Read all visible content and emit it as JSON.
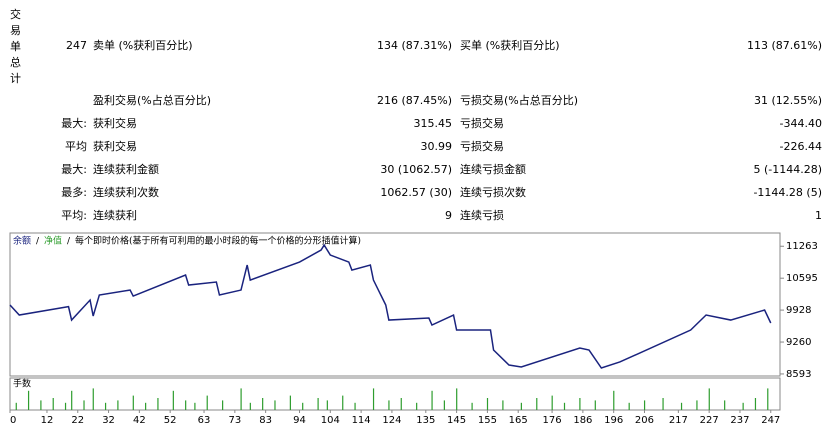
{
  "summary": {
    "side_label": [
      "交",
      "易",
      "单",
      "总",
      "计"
    ],
    "rows": [
      [
        "247",
        "卖单 (%获利百分比)",
        "134 (87.31%)",
        "买单 (%获利百分比)",
        "113 (87.61%)"
      ],
      [
        null,
        "盈利交易(%占总百分比)",
        "216 (87.45%)",
        "亏损交易(%占总百分比)",
        "31 (12.55%)"
      ],
      [
        "最大:",
        "获利交易",
        "315.45",
        "亏损交易",
        "-344.40"
      ],
      [
        "平均",
        "获利交易",
        "30.99",
        "亏损交易",
        "-226.44"
      ],
      [
        "最大:",
        "连续获利金额",
        "30 (1062.57)",
        "连续亏损金额",
        "5 (-1144.28)"
      ],
      [
        "最多:",
        "连续获利次数",
        "1062.57 (30)",
        "连续亏损次数",
        "-1144.28 (5)"
      ],
      [
        "平均:",
        "连续获利",
        "9",
        "连续亏损",
        "1"
      ]
    ]
  },
  "chart_data": [
    {
      "type": "line",
      "legend_items": [
        {
          "text": "余额",
          "color": "#1a237e"
        },
        {
          "text": "净值",
          "color": "#2e9d2e"
        },
        {
          "text": "每个即时价格(基于所有可利用的最小时段的每一个价格的分形插值计算)",
          "color": "#000000"
        }
      ],
      "x": [
        0,
        3,
        19,
        20,
        26,
        27,
        29,
        39,
        40,
        57,
        58,
        67,
        68,
        75,
        77,
        78,
        94,
        101,
        102,
        104,
        110,
        111,
        117,
        118,
        122,
        123,
        136,
        137,
        144,
        145,
        156,
        157,
        162,
        166,
        185,
        188,
        192,
        198,
        221,
        226,
        234,
        245,
        247
      ],
      "series": [
        {
          "name": "余额",
          "color": "#1a237e",
          "values": [
            10034,
            9825,
            10000,
            9720,
            10138,
            9804,
            10243,
            10347,
            10222,
            10661,
            10452,
            10515,
            10243,
            10347,
            10870,
            10556,
            10933,
            11183,
            11288,
            11079,
            10933,
            10765,
            10870,
            10556,
            10034,
            9720,
            9762,
            9616,
            9825,
            9511,
            9511,
            9093,
            8780,
            8738,
            9135,
            9093,
            8717,
            8843,
            9511,
            9825,
            9720,
            9929,
            9658
          ]
        }
      ],
      "xlim": [
        0,
        250
      ],
      "ylim": [
        8550,
        11540
      ],
      "yticks": [
        8593,
        9260,
        9928,
        10595,
        11263
      ],
      "xticks": [
        0,
        12,
        22,
        32,
        42,
        52,
        63,
        73,
        83,
        94,
        104,
        114,
        124,
        135,
        145,
        155,
        165,
        176,
        186,
        196,
        206,
        217,
        227,
        237,
        247
      ]
    },
    {
      "type": "bar",
      "title": "手数",
      "color": "#2e9d2e",
      "x": [
        2,
        6,
        10,
        14,
        18,
        20,
        24,
        27,
        31,
        35,
        40,
        44,
        48,
        53,
        57,
        60,
        64,
        69,
        75,
        78,
        82,
        86,
        91,
        95,
        100,
        103,
        108,
        112,
        118,
        123,
        127,
        132,
        137,
        141,
        145,
        150,
        155,
        160,
        166,
        171,
        176,
        180,
        185,
        190,
        196,
        201,
        206,
        212,
        218,
        223,
        227,
        232,
        238,
        242,
        246
      ],
      "values": [
        0.3,
        0.8,
        0.4,
        0.5,
        0.3,
        0.8,
        0.4,
        0.9,
        0.3,
        0.4,
        0.6,
        0.3,
        0.5,
        0.8,
        0.4,
        0.3,
        0.6,
        0.4,
        0.9,
        0.3,
        0.5,
        0.4,
        0.6,
        0.3,
        0.5,
        0.4,
        0.6,
        0.3,
        0.9,
        0.4,
        0.5,
        0.3,
        0.8,
        0.4,
        0.9,
        0.3,
        0.5,
        0.4,
        0.3,
        0.5,
        0.6,
        0.3,
        0.5,
        0.4,
        0.8,
        0.3,
        0.4,
        0.5,
        0.3,
        0.4,
        0.9,
        0.4,
        0.3,
        0.5,
        0.9
      ],
      "xlim": [
        0,
        250
      ],
      "ylim": [
        0,
        1
      ]
    }
  ]
}
